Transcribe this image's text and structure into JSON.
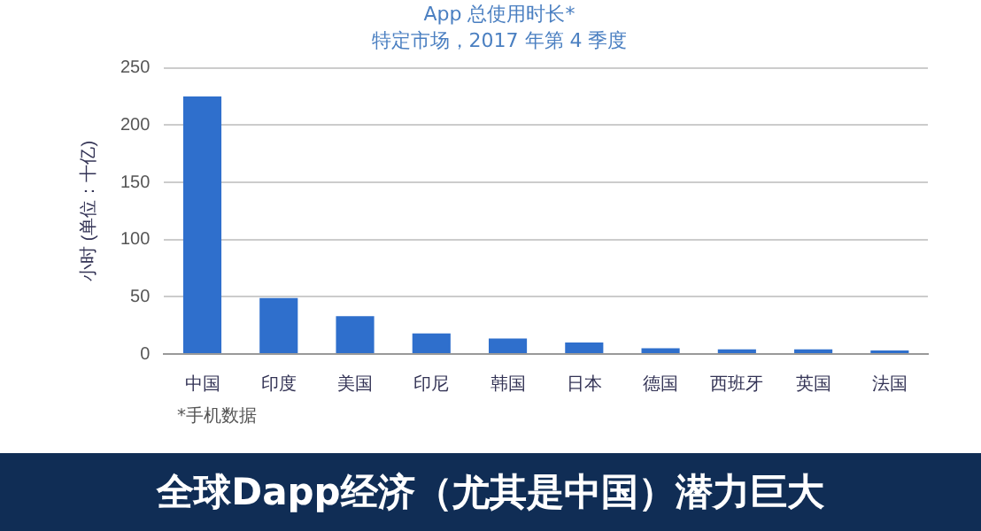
{
  "chart_data": {
    "type": "bar",
    "title": "App 总使用时长*",
    "subtitle": "特定市场，2017 年第 4 季度",
    "ylabel": "小时 (单位：十亿)",
    "categories": [
      "中国",
      "印度",
      "美国",
      "印尼",
      "韩国",
      "日本",
      "德国",
      "西班牙",
      "英国",
      "法国"
    ],
    "values": [
      225,
      49,
      33,
      18,
      13.5,
      10,
      5,
      4,
      4,
      3
    ],
    "color": "#2f6fcc",
    "ylim": [
      0,
      250
    ],
    "yticks": [
      0,
      50,
      100,
      150,
      200,
      250
    ],
    "grid": "y",
    "annotations": [
      "*手机数据",
      "全球Dapp经济（尤其是中国）潜力巨大"
    ]
  }
}
